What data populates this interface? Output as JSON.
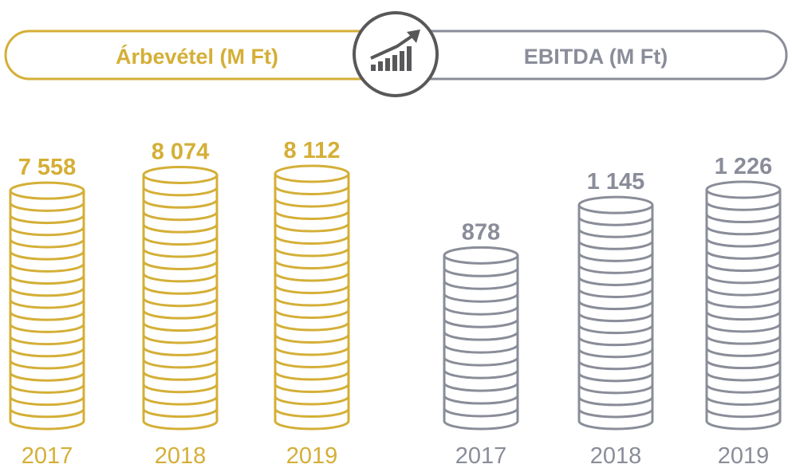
{
  "colors": {
    "gold": "#d4af37",
    "gray": "#8a8d99",
    "icon": "#58585a"
  },
  "icon": "growth-chart-icon",
  "chart_data": [
    {
      "type": "bar",
      "title": "Árbevétel (M Ft)",
      "categories": [
        "2017",
        "2018",
        "2019"
      ],
      "values": [
        7558,
        8074,
        8112
      ],
      "value_labels": [
        "7 558",
        "8 074",
        "8 112"
      ],
      "ylim": [
        0,
        8112
      ],
      "grid": false,
      "color": "#d4af37"
    },
    {
      "type": "bar",
      "title": "EBITDA (M Ft)",
      "categories": [
        "2017",
        "2018",
        "2019"
      ],
      "values": [
        878,
        1145,
        1226
      ],
      "value_labels": [
        "878",
        "1 145",
        "1 226"
      ],
      "ylim": [
        0,
        1226
      ],
      "grid": false,
      "color": "#8a8d99"
    }
  ]
}
